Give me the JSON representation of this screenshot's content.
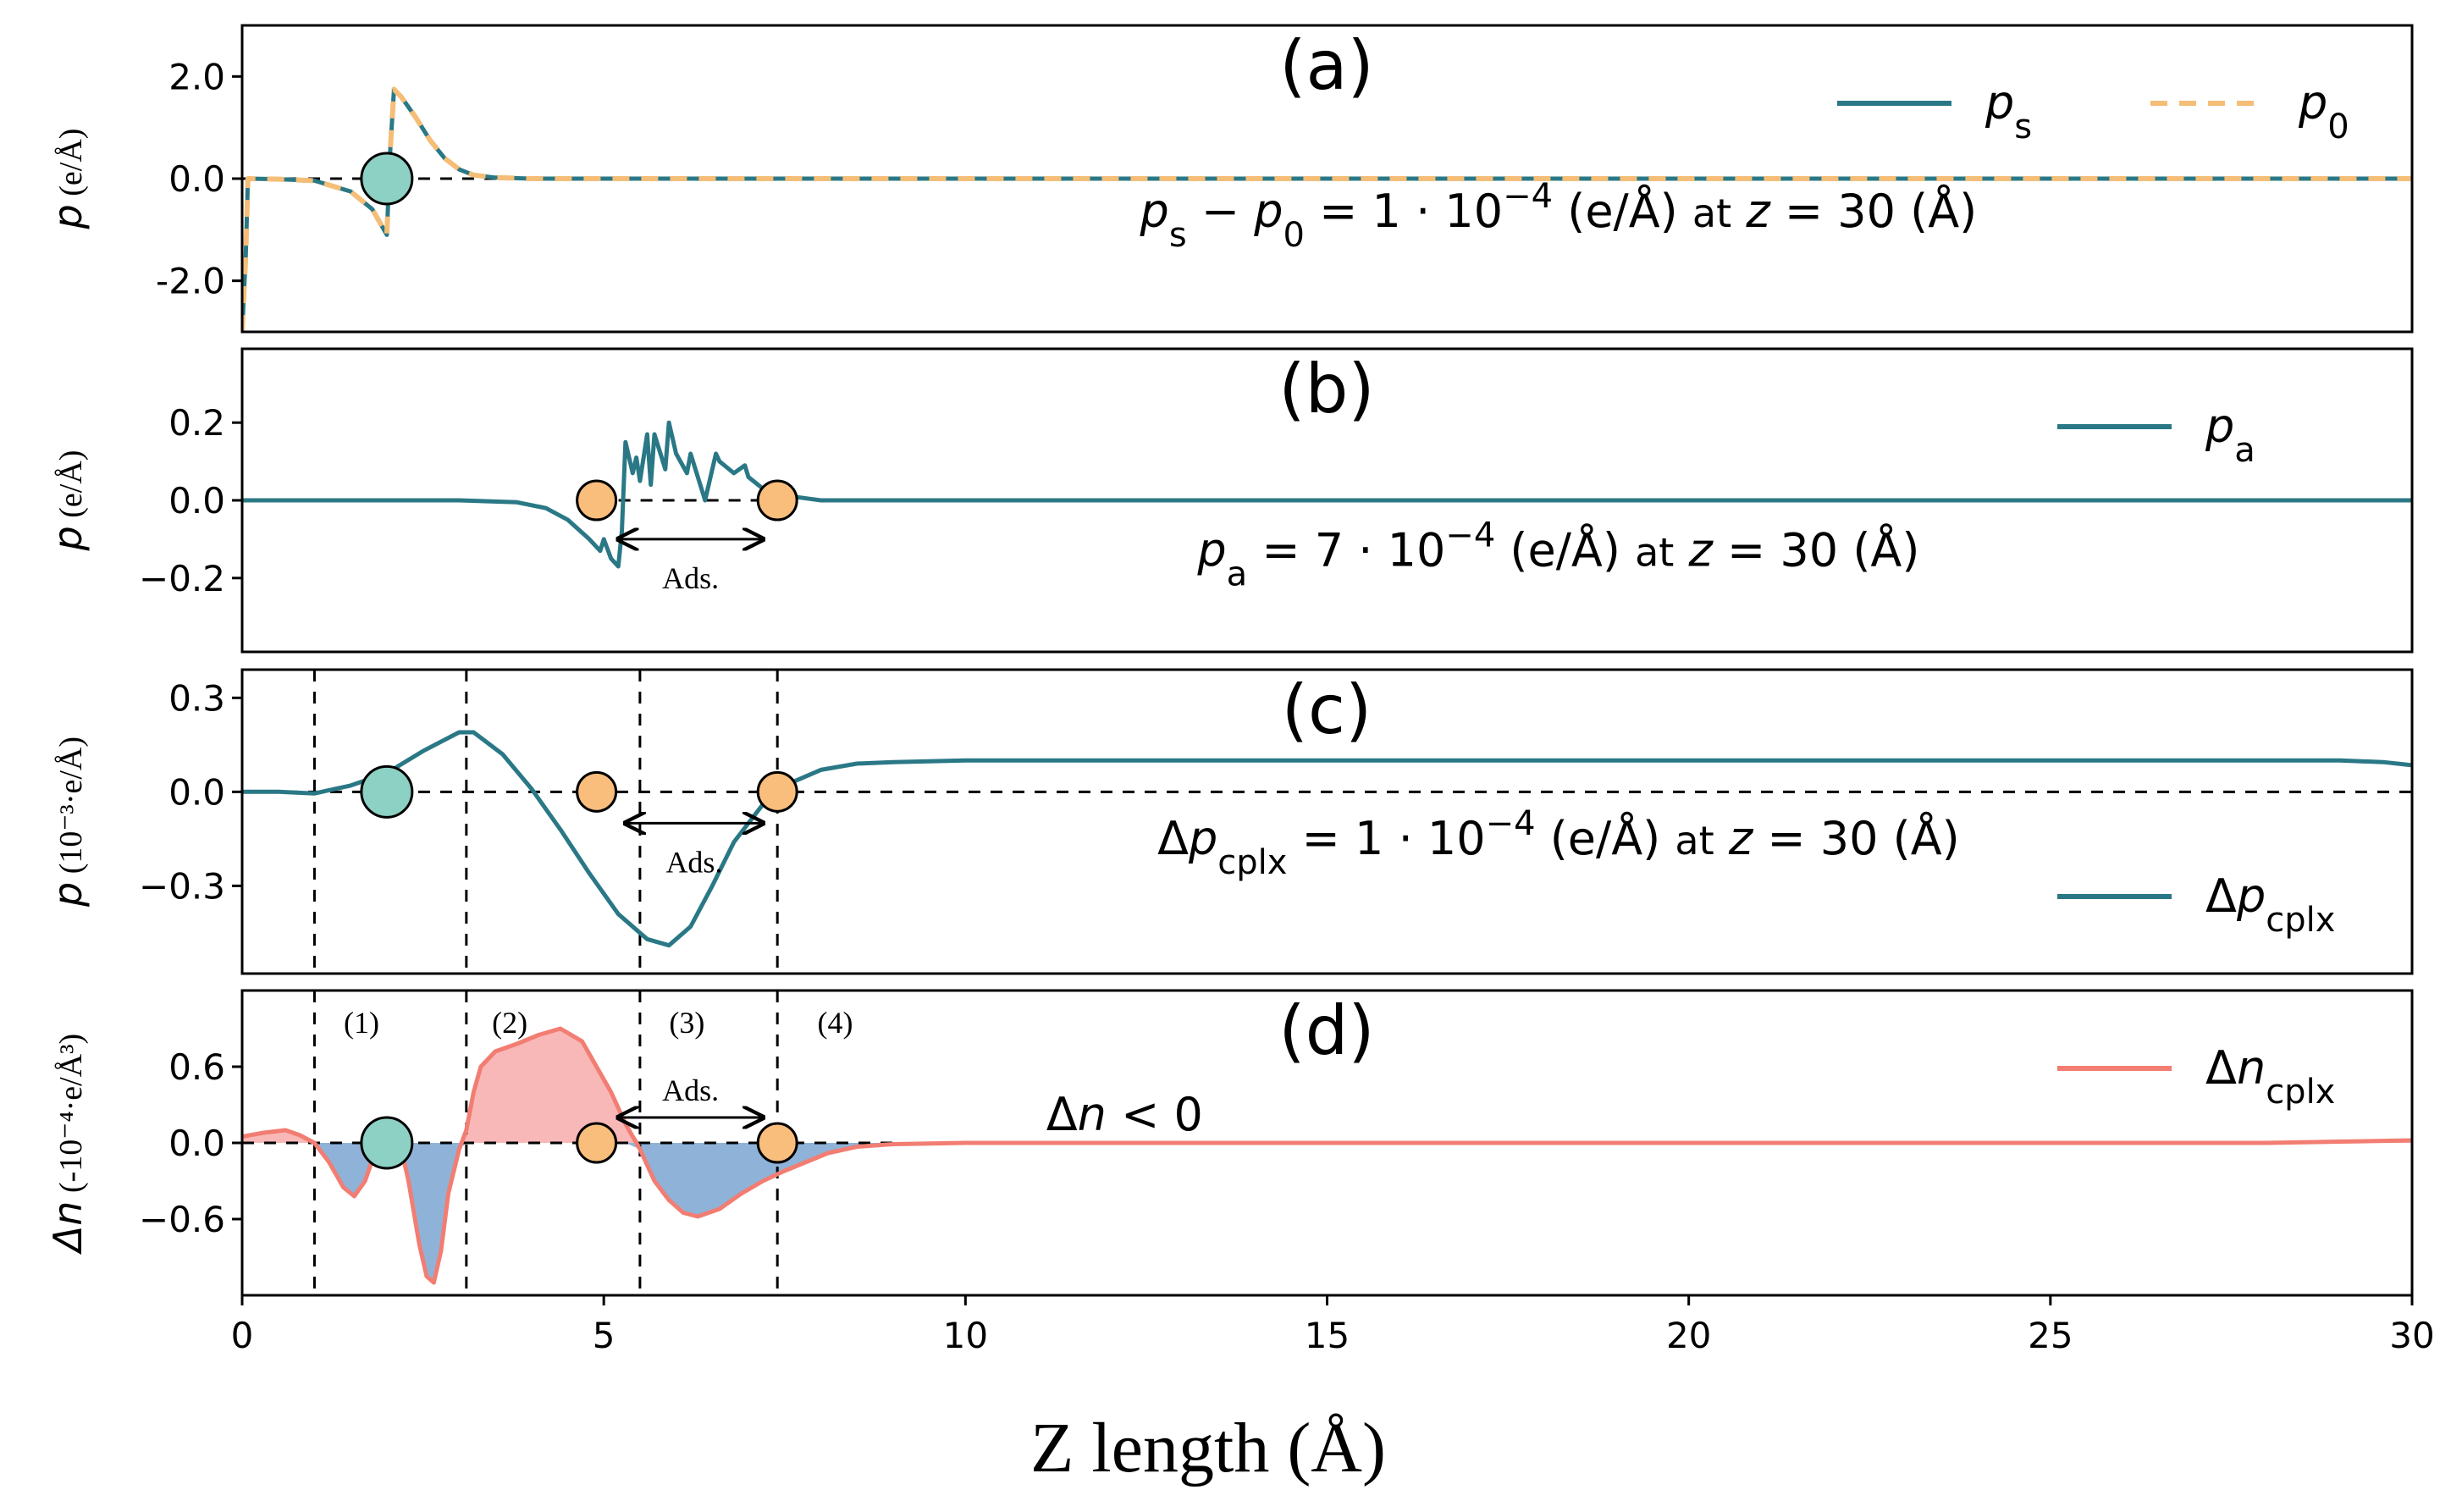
{
  "colors": {
    "teal": "#2a7886",
    "orange": "#f5be78",
    "salmon": "#f27d72",
    "pos_fill": "#f9b8b8",
    "neg_fill": "#8fb3d8",
    "atom_teal": "#8dd0c4",
    "atom_orange": "#f9bd7c",
    "axis": "#000000"
  },
  "xaxis": {
    "label": "Z length (Å)",
    "ticks": [
      0,
      5,
      10,
      15,
      20,
      25,
      30
    ],
    "tick_labels": [
      "0",
      "5",
      "10",
      "15",
      "20",
      "25",
      "30"
    ],
    "range": [
      0,
      30
    ]
  },
  "chart_data": [
    {
      "type": "line",
      "panel_label": "(a)",
      "ylabel": {
        "italic": "p",
        "rest": " (e/Å)"
      },
      "ylim": [
        -3.0,
        3.0
      ],
      "yticks": [
        2.0,
        0.0,
        -2.0
      ],
      "ytick_labels": [
        "2.0",
        "0.0",
        "-2.0"
      ],
      "annotation": {
        "text": "p_s − p_0 = 1·10^−4 (e/Å) at z = 30 (Å)",
        "x": 18.2,
        "y": -0.65
      },
      "legend": [
        {
          "label_main": "p",
          "label_sub": "s",
          "color_key": "teal",
          "dash": false
        },
        {
          "label_main": "p",
          "label_sub": "0",
          "color_key": "orange",
          "dash": true
        }
      ],
      "zero_line_dashed": true,
      "atoms": [
        {
          "x": 2.0,
          "y": 0.0,
          "color_key": "atom_teal",
          "size": "large"
        }
      ],
      "series": [
        {
          "name": "p_s",
          "color_key": "teal",
          "dash": false,
          "x": [
            0,
            0.05,
            0.08,
            0.5,
            1.0,
            1.5,
            1.8,
            2.0,
            2.05,
            2.1,
            2.2,
            2.4,
            2.6,
            2.8,
            3.0,
            3.2,
            3.5,
            4.0,
            30
          ],
          "y": [
            -3.0,
            -1.5,
            0.0,
            -0.01,
            -0.04,
            -0.25,
            -0.6,
            -1.1,
            0.6,
            1.75,
            1.6,
            1.2,
            0.75,
            0.4,
            0.18,
            0.07,
            0.02,
            0.0,
            0.0
          ]
        },
        {
          "name": "p_0",
          "color_key": "orange",
          "dash": true,
          "x": [
            0,
            0.05,
            0.08,
            0.5,
            1.0,
            1.5,
            1.8,
            2.0,
            2.05,
            2.1,
            2.2,
            2.4,
            2.6,
            2.8,
            3.0,
            3.2,
            3.5,
            4.0,
            30
          ],
          "y": [
            -3.0,
            -1.5,
            0.0,
            -0.01,
            -0.04,
            -0.25,
            -0.6,
            -1.1,
            0.6,
            1.75,
            1.6,
            1.2,
            0.75,
            0.4,
            0.18,
            0.07,
            0.02,
            0.0,
            0.0
          ]
        }
      ]
    },
    {
      "type": "line",
      "panel_label": "(b)",
      "ylabel": {
        "italic": "p",
        "rest": " (e/Å)"
      },
      "ylim": [
        -0.39,
        0.39
      ],
      "yticks": [
        0.2,
        0.0,
        -0.2
      ],
      "ytick_labels": [
        "0.2",
        "0.0",
        "−0.2"
      ],
      "annotation": {
        "text": "p_a = 7·10^−4 (e/Å) at z = 30 (Å)",
        "x": 18.2,
        "y": -0.13
      },
      "legend": [
        {
          "label_main": "p",
          "label_sub": "a",
          "color_key": "teal",
          "dash": false
        }
      ],
      "zero_segments": [
        [
          4.9,
          7.4
        ]
      ],
      "span_arrow": {
        "x1": 5.2,
        "x2": 7.2,
        "y": -0.1,
        "label": "Ads."
      },
      "atoms": [
        {
          "x": 4.9,
          "y": 0.0,
          "color_key": "atom_orange",
          "size": "small"
        },
        {
          "x": 7.4,
          "y": 0.0,
          "color_key": "atom_orange",
          "size": "small"
        }
      ],
      "series": [
        {
          "name": "p_a",
          "color_key": "teal",
          "dash": false,
          "x": [
            0,
            3.0,
            3.8,
            4.2,
            4.5,
            4.8,
            4.95,
            5.0,
            5.1,
            5.2,
            5.25,
            5.3,
            5.4,
            5.45,
            5.5,
            5.6,
            5.65,
            5.7,
            5.85,
            5.9,
            6.0,
            6.15,
            6.2,
            6.4,
            6.55,
            6.6,
            6.8,
            6.95,
            7.0,
            7.2,
            7.4,
            7.6,
            7.8,
            8.0,
            8.5,
            30
          ],
          "y": [
            0.0,
            0.0,
            -0.005,
            -0.02,
            -0.05,
            -0.1,
            -0.13,
            -0.1,
            -0.15,
            -0.17,
            -0.08,
            0.15,
            0.07,
            0.11,
            0.05,
            0.17,
            0.04,
            0.17,
            0.08,
            0.2,
            0.12,
            0.07,
            0.12,
            0.0,
            0.12,
            0.1,
            0.07,
            0.09,
            0.06,
            0.03,
            0.02,
            0.01,
            0.005,
            0.0,
            0.0,
            0.0
          ]
        }
      ]
    },
    {
      "type": "line",
      "panel_label": "(c)",
      "ylabel": {
        "italic": "p",
        "rest": " (10⁻³·e/Å)"
      },
      "ylim": [
        -0.58,
        0.39
      ],
      "yticks": [
        0.3,
        0.0,
        -0.3
      ],
      "ytick_labels": [
        "0.3",
        "0.0",
        "−0.3"
      ],
      "annotation": {
        "text": "Δp_cplx = 1·10^−4 (e/Å) at z = 30 (Å)",
        "x": 18.2,
        "y": -0.15
      },
      "legend": [
        {
          "label_main": "Δp",
          "label_sub": "cplx",
          "color_key": "teal",
          "dash": false
        }
      ],
      "zero_line_dashed": true,
      "vlines": [
        1.0,
        3.1,
        5.5,
        7.4
      ],
      "span_arrow": {
        "x1": 5.3,
        "x2": 7.2,
        "y": -0.1,
        "label": "Ads."
      },
      "atoms": [
        {
          "x": 2.0,
          "y": 0.0,
          "color_key": "atom_teal",
          "size": "large"
        },
        {
          "x": 4.9,
          "y": 0.0,
          "color_key": "atom_orange",
          "size": "small"
        },
        {
          "x": 7.4,
          "y": 0.0,
          "color_key": "atom_orange",
          "size": "small"
        }
      ],
      "series": [
        {
          "name": "Δp_cplx",
          "color_key": "teal",
          "dash": false,
          "x": [
            0,
            0.5,
            1.0,
            1.5,
            2.0,
            2.5,
            3.0,
            3.2,
            3.6,
            4.0,
            4.4,
            4.8,
            5.2,
            5.6,
            5.9,
            6.2,
            6.5,
            6.8,
            7.2,
            7.4,
            7.6,
            8.0,
            8.5,
            9.0,
            10,
            20,
            29,
            29.6,
            30
          ],
          "y": [
            0.0,
            0.0,
            -0.005,
            0.02,
            0.06,
            0.13,
            0.19,
            0.19,
            0.12,
            0.01,
            -0.12,
            -0.26,
            -0.39,
            -0.47,
            -0.49,
            -0.43,
            -0.3,
            -0.16,
            -0.04,
            -0.005,
            0.03,
            0.07,
            0.09,
            0.095,
            0.1,
            0.1,
            0.1,
            0.095,
            0.085
          ]
        }
      ]
    },
    {
      "type": "area",
      "panel_label": "(d)",
      "ylabel": {
        "italic": "Δn",
        "rest": " (-10⁻⁴·e/Å³)"
      },
      "ylim": [
        -1.2,
        1.2
      ],
      "yticks": [
        0.6,
        0.0,
        -0.6
      ],
      "ytick_labels": [
        "0.6",
        "0.0",
        "−0.6"
      ],
      "annotation": {
        "text": "Δn < 0",
        "x": 12.2,
        "y": 0.22
      },
      "legend": [
        {
          "label_main": "Δn",
          "label_sub": "cplx",
          "color_key": "salmon",
          "dash": false
        }
      ],
      "zero_segments": [
        [
          0,
          9.0
        ]
      ],
      "vlines": [
        1.0,
        3.1,
        5.5,
        7.4
      ],
      "region_labels": [
        {
          "text": "(1)",
          "x": 1.65
        },
        {
          "text": "(2)",
          "x": 3.7
        },
        {
          "text": "(3)",
          "x": 6.15
        },
        {
          "text": "(4)",
          "x": 8.2
        }
      ],
      "span_arrow": {
        "x1": 5.2,
        "x2": 7.2,
        "y": 0.2,
        "label": "Ads."
      },
      "atoms": [
        {
          "x": 2.0,
          "y": 0.0,
          "color_key": "atom_teal",
          "size": "large"
        },
        {
          "x": 4.9,
          "y": 0.0,
          "color_key": "atom_orange",
          "size": "small"
        },
        {
          "x": 7.4,
          "y": 0.0,
          "color_key": "atom_orange",
          "size": "small"
        }
      ],
      "series": [
        {
          "name": "Δn_cplx",
          "color_key": "salmon",
          "dash": false,
          "x": [
            0,
            0.3,
            0.6,
            0.8,
            1.0,
            1.2,
            1.4,
            1.55,
            1.7,
            1.85,
            2.0,
            2.15,
            2.3,
            2.45,
            2.55,
            2.65,
            2.75,
            2.85,
            3.0,
            3.1,
            3.2,
            3.3,
            3.5,
            3.8,
            4.1,
            4.4,
            4.7,
            4.9,
            5.1,
            5.3,
            5.5,
            5.7,
            5.9,
            6.1,
            6.3,
            6.6,
            6.9,
            7.2,
            7.5,
            7.8,
            8.1,
            8.5,
            9.0,
            10,
            20,
            28,
            29,
            30
          ],
          "y": [
            0.05,
            0.08,
            0.1,
            0.06,
            0.0,
            -0.15,
            -0.35,
            -0.42,
            -0.3,
            -0.05,
            0.15,
            0.08,
            -0.3,
            -0.8,
            -1.05,
            -1.1,
            -0.85,
            -0.4,
            -0.05,
            0.1,
            0.4,
            0.6,
            0.72,
            0.78,
            0.85,
            0.9,
            0.8,
            0.6,
            0.4,
            0.15,
            -0.05,
            -0.3,
            -0.45,
            -0.55,
            -0.58,
            -0.52,
            -0.4,
            -0.3,
            -0.22,
            -0.15,
            -0.08,
            -0.03,
            -0.01,
            0.0,
            0.0,
            0.0,
            0.01,
            0.02
          ]
        }
      ]
    }
  ]
}
